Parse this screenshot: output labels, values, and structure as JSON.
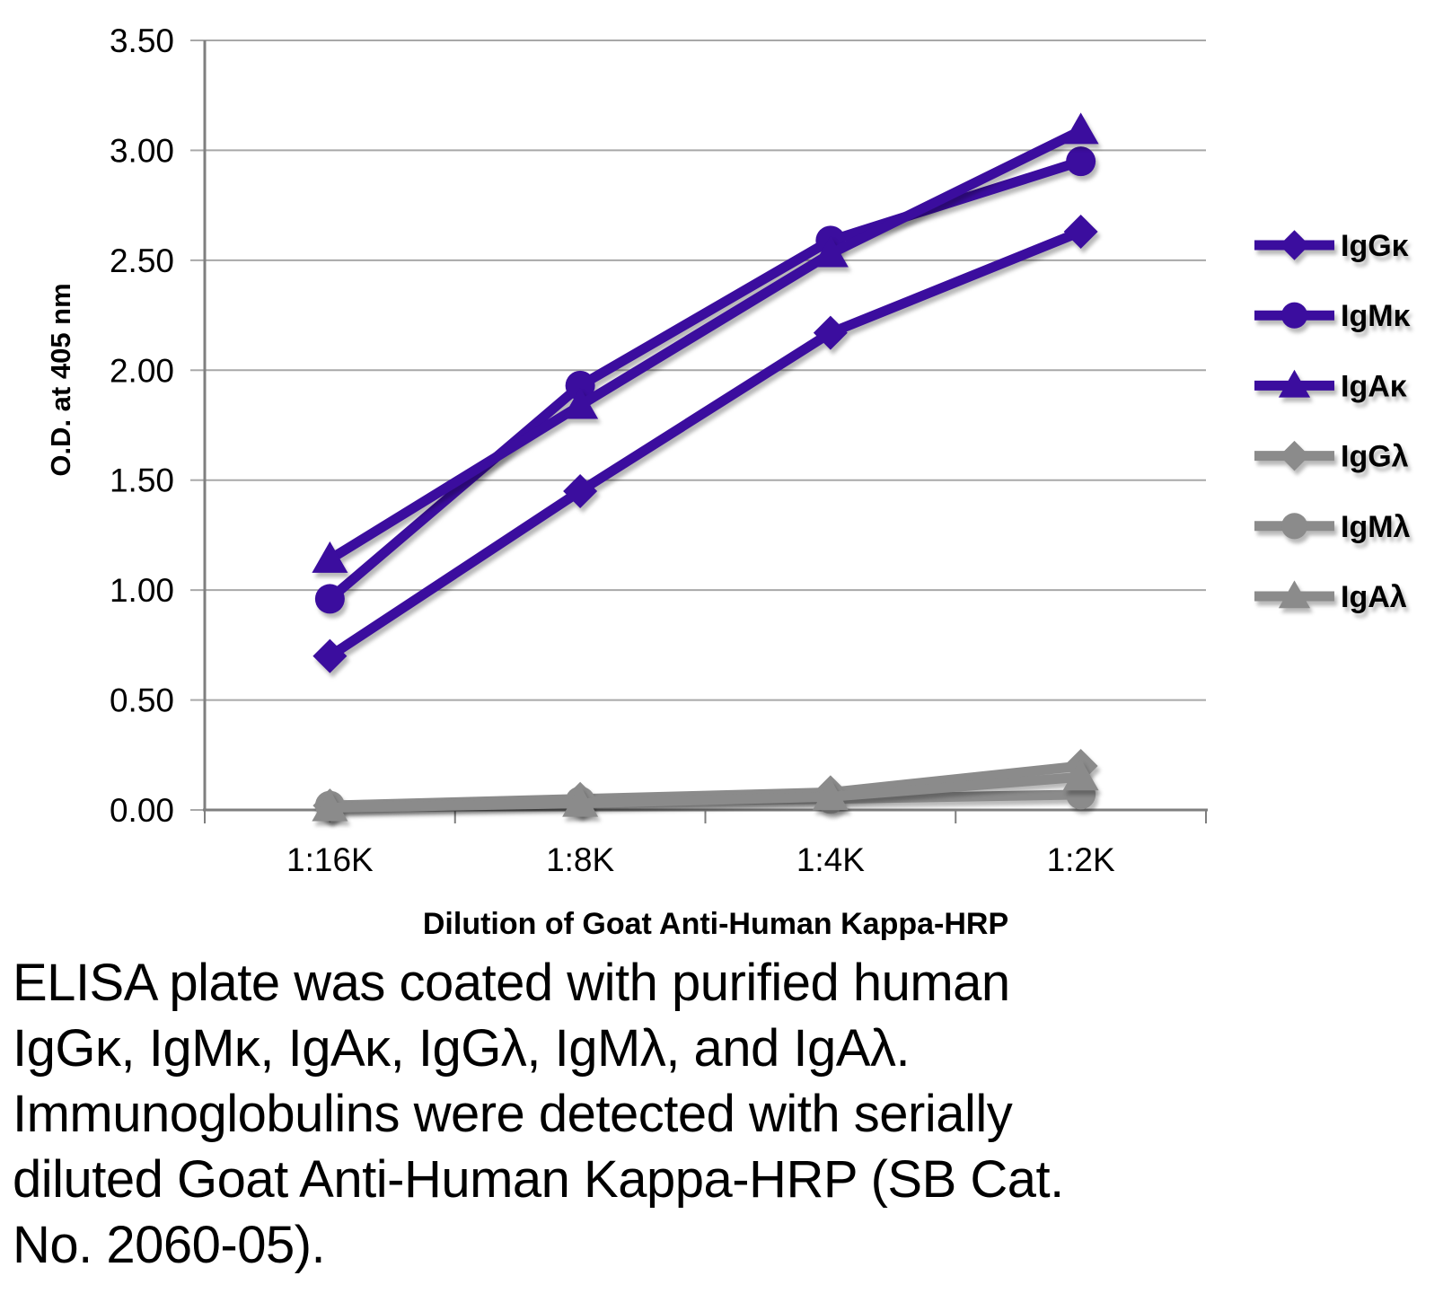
{
  "figure": {
    "caption": {
      "lines": [
        "ELISA plate was coated with purified human",
        "IgGκ, IgMκ, IgAκ, IgGλ, IgMλ, and IgAλ.",
        "Immunoglobulins were detected with serially",
        "diluted Goat Anti-Human Kappa-HRP (SB Cat.",
        "No. 2060-05)."
      ]
    }
  },
  "chart_data": {
    "type": "line",
    "title": "",
    "xlabel": "Dilution of Goat Anti-Human Kappa-HRP",
    "ylabel": "O.D. at 405 nm",
    "categories": [
      "1:16K",
      "1:8K",
      "1:4K",
      "1:2K"
    ],
    "ylim": [
      0.0,
      3.5
    ],
    "ytick_step": 0.5,
    "ytick_labels": [
      "0.00",
      "0.50",
      "1.00",
      "1.50",
      "2.00",
      "2.50",
      "3.00",
      "3.50"
    ],
    "grid": true,
    "legend_position": "right",
    "colors": {
      "kappa_series": "#3B0D9E",
      "lambda_series": "#8B8B8B",
      "gridline": "#A8A8A8",
      "axis": "#7F7F7F",
      "text": "#000000"
    },
    "series": [
      {
        "name": "IgGκ",
        "marker": "diamond",
        "color": "#3B0D9E",
        "values": [
          0.7,
          1.45,
          2.17,
          2.63
        ]
      },
      {
        "name": "IgMκ",
        "marker": "circle",
        "color": "#3B0D9E",
        "values": [
          0.96,
          1.93,
          2.59,
          2.95
        ]
      },
      {
        "name": "IgAκ",
        "marker": "triangle",
        "color": "#3B0D9E",
        "values": [
          1.14,
          1.84,
          2.53,
          3.09
        ]
      },
      {
        "name": "IgGλ",
        "marker": "diamond",
        "color": "#8B8B8B",
        "values": [
          0.02,
          0.05,
          0.08,
          0.2
        ]
      },
      {
        "name": "IgMλ",
        "marker": "circle",
        "color": "#8B8B8B",
        "values": [
          0.02,
          0.04,
          0.05,
          0.07
        ]
      },
      {
        "name": "IgAλ",
        "marker": "triangle",
        "color": "#8B8B8B",
        "values": [
          0.01,
          0.03,
          0.06,
          0.15
        ]
      }
    ]
  }
}
